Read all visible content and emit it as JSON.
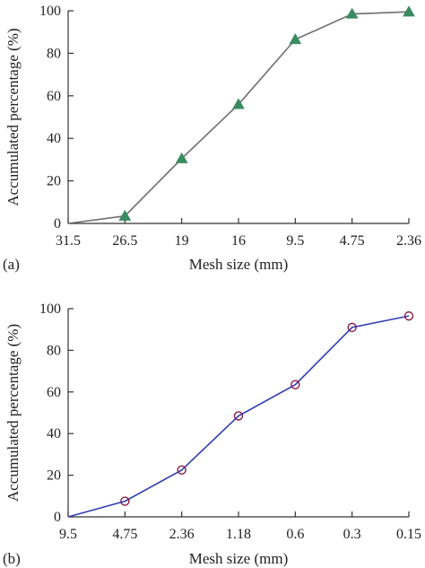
{
  "chart_data": [
    {
      "type": "line",
      "panel_label": "(a)",
      "title": "",
      "xlabel": "Mesh size (mm)",
      "ylabel": "Accumulated percentage (%)",
      "categories": [
        "31.5",
        "26.5",
        "19",
        "16",
        "9.5",
        "4.75",
        "2.36"
      ],
      "series": [
        {
          "values": [
            0,
            3.5,
            30.5,
            56,
            86.5,
            98.5,
            99.5
          ],
          "color": "#6e6e6e",
          "marker": "triangle",
          "marker_color": "#3a8c60",
          "show_marker_first": false
        }
      ],
      "ylim": [
        0,
        100
      ],
      "yticks": [
        0,
        20,
        40,
        60,
        80,
        100
      ],
      "grid": false
    },
    {
      "type": "line",
      "panel_label": "(b)",
      "title": "",
      "xlabel": "Mesh size (mm)",
      "ylabel": "Accumulated percentage (%)",
      "categories": [
        "9.5",
        "4.75",
        "2.36",
        "1.18",
        "0.6",
        "0.3",
        "0.15"
      ],
      "series": [
        {
          "values": [
            0,
            7.5,
            22.5,
            48.5,
            63.5,
            91,
            96.5
          ],
          "color": "#2f3fb0",
          "marker": "circle",
          "marker_color": "#8b1a4a",
          "show_marker_first": false
        }
      ],
      "ylim": [
        0,
        100
      ],
      "yticks": [
        0,
        20,
        40,
        60,
        80,
        100
      ],
      "grid": false
    }
  ]
}
